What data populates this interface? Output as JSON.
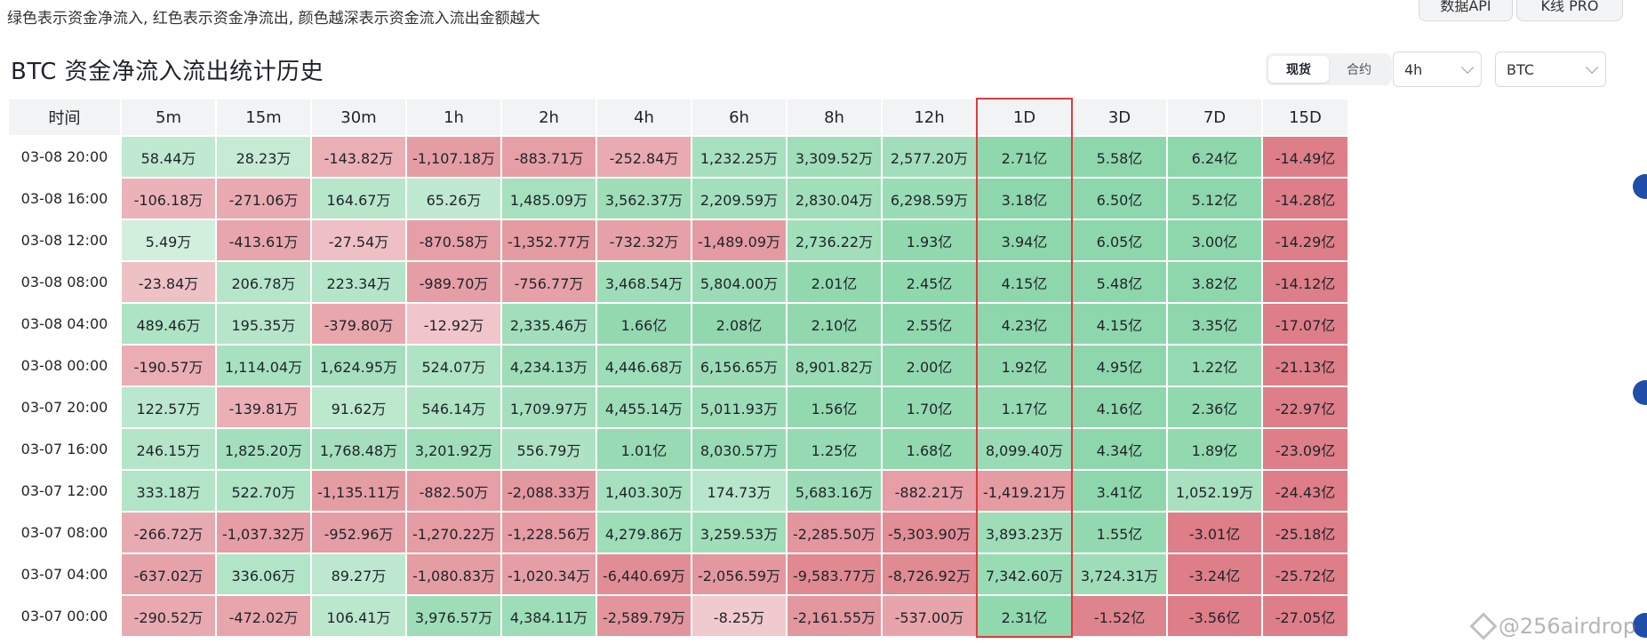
{
  "note": "绿色表示资金净流入, 红色表示资金净流出, 颜色越深表示资金流入流出金额越大",
  "toolbar": {
    "api_label": "数据API",
    "kline_label": "K线 PRO"
  },
  "title": "BTC 资金净流入流出统计历史",
  "market_tabs": [
    {
      "label": "现货",
      "active": true
    },
    {
      "label": "合约",
      "active": false
    }
  ],
  "interval_select": {
    "value": "4h"
  },
  "coin_select": {
    "value": "BTC"
  },
  "highlight_column": "1D",
  "colors": {
    "green": "#9fd8b7",
    "red": "#e7a7ad",
    "highlight_border": "#e23b3b"
  },
  "table": {
    "headers": [
      "时间",
      "5m",
      "15m",
      "30m",
      "1h",
      "2h",
      "4h",
      "6h",
      "8h",
      "12h",
      "1D",
      "3D",
      "7D",
      "15D"
    ],
    "rows": [
      {
        "time": "03-08 20:00",
        "cells": [
          "58.44万",
          "28.23万",
          "-143.82万",
          "-1,107.18万",
          "-883.71万",
          "-252.84万",
          "1,232.25万",
          "3,309.52万",
          "2,577.20万",
          "2.71亿",
          "5.58亿",
          "6.24亿",
          "-14.49亿"
        ]
      },
      {
        "time": "03-08 16:00",
        "cells": [
          "-106.18万",
          "-271.06万",
          "164.67万",
          "65.26万",
          "1,485.09万",
          "3,562.37万",
          "2,209.59万",
          "2,830.04万",
          "6,298.59万",
          "3.18亿",
          "6.50亿",
          "5.12亿",
          "-14.28亿"
        ]
      },
      {
        "time": "03-08 12:00",
        "cells": [
          "5.49万",
          "-413.61万",
          "-27.54万",
          "-870.58万",
          "-1,352.77万",
          "-732.32万",
          "-1,489.09万",
          "2,736.22万",
          "1.93亿",
          "3.94亿",
          "6.05亿",
          "3.00亿",
          "-14.29亿"
        ]
      },
      {
        "time": "03-08 08:00",
        "cells": [
          "-23.84万",
          "206.78万",
          "223.34万",
          "-989.70万",
          "-756.77万",
          "3,468.54万",
          "5,804.00万",
          "2.01亿",
          "2.45亿",
          "4.15亿",
          "5.48亿",
          "3.82亿",
          "-14.12亿"
        ]
      },
      {
        "time": "03-08 04:00",
        "cells": [
          "489.46万",
          "195.35万",
          "-379.80万",
          "-12.92万",
          "2,335.46万",
          "1.66亿",
          "2.08亿",
          "2.10亿",
          "2.55亿",
          "4.23亿",
          "4.15亿",
          "3.35亿",
          "-17.07亿"
        ]
      },
      {
        "time": "03-08 00:00",
        "cells": [
          "-190.57万",
          "1,114.04万",
          "1,624.95万",
          "524.07万",
          "4,234.13万",
          "4,446.68万",
          "6,156.65万",
          "8,901.82万",
          "2.00亿",
          "1.92亿",
          "4.95亿",
          "1.22亿",
          "-21.13亿"
        ]
      },
      {
        "time": "03-07 20:00",
        "cells": [
          "122.57万",
          "-139.81万",
          "91.62万",
          "546.14万",
          "1,709.97万",
          "4,455.14万",
          "5,011.93万",
          "1.56亿",
          "1.70亿",
          "1.17亿",
          "4.16亿",
          "2.36亿",
          "-22.97亿"
        ]
      },
      {
        "time": "03-07 16:00",
        "cells": [
          "246.15万",
          "1,825.20万",
          "1,768.48万",
          "3,201.92万",
          "556.79万",
          "1.01亿",
          "8,030.57万",
          "1.25亿",
          "1.68亿",
          "8,099.40万",
          "4.34亿",
          "1.89亿",
          "-23.09亿"
        ]
      },
      {
        "time": "03-07 12:00",
        "cells": [
          "333.18万",
          "522.70万",
          "-1,135.11万",
          "-882.50万",
          "-2,088.33万",
          "1,403.30万",
          "174.73万",
          "5,683.16万",
          "-882.21万",
          "-1,419.21万",
          "3.41亿",
          "1,052.19万",
          "-24.43亿"
        ]
      },
      {
        "time": "03-07 08:00",
        "cells": [
          "-266.72万",
          "-1,037.32万",
          "-952.96万",
          "-1,270.22万",
          "-1,228.56万",
          "4,279.86万",
          "3,259.53万",
          "-2,285.50万",
          "-5,303.90万",
          "3,893.23万",
          "1.55亿",
          "-3.01亿",
          "-25.18亿"
        ]
      },
      {
        "time": "03-07 04:00",
        "cells": [
          "-637.02万",
          "336.06万",
          "89.27万",
          "-1,080.83万",
          "-1,020.34万",
          "-6,440.69万",
          "-2,056.59万",
          "-9,583.77万",
          "-8,726.92万",
          "7,342.60万",
          "3,724.31万",
          "-3.24亿",
          "-25.72亿"
        ]
      },
      {
        "time": "03-07 00:00",
        "cells": [
          "-290.52万",
          "-472.02万",
          "106.41万",
          "3,976.57万",
          "4,384.11万",
          "-2,589.79万",
          "-8.25万",
          "-2,161.55万",
          "-537.00万",
          "2.31亿",
          "-1.52亿",
          "-3.56亿",
          "-27.05亿"
        ]
      }
    ]
  },
  "watermark": "@256airdrop"
}
